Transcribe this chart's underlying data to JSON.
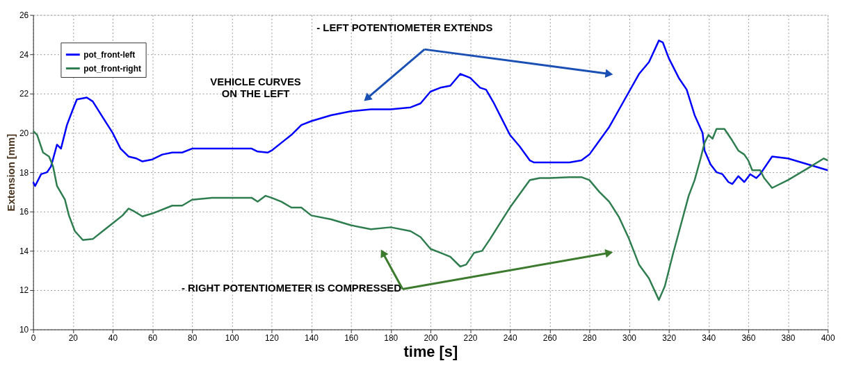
{
  "chart_data": {
    "type": "line",
    "xlabel": "time [s]",
    "ylabel": "Extension [mm]",
    "xlim": [
      0,
      400
    ],
    "xticks": [
      0,
      20,
      40,
      60,
      80,
      100,
      120,
      140,
      160,
      180,
      200,
      220,
      240,
      260,
      280,
      300,
      320,
      340,
      360,
      380,
      400
    ],
    "ylim": [
      10,
      26
    ],
    "yticks": [
      10,
      12,
      14,
      16,
      18,
      20,
      22,
      24,
      26
    ],
    "grid": true,
    "legend": "top left",
    "line_style": "solid",
    "marker": "none",
    "annotations": [
      "- LEFT POTENTIOMETER  EXTENDS",
      "VEHICLE  CURVES\nON THE LEFT",
      "- RIGHT POTENTIOMETER  IS COMPRESSED"
    ],
    "series": [
      {
        "name": "pot_front-left",
        "color": "#0000ff",
        "x": [
          0,
          1,
          4,
          7,
          9,
          12,
          14,
          17,
          20,
          22,
          27,
          30,
          35,
          40,
          44,
          48,
          52,
          55,
          60,
          65,
          70,
          75,
          80,
          90,
          100,
          110,
          113,
          118,
          120,
          125,
          130,
          135,
          140,
          150,
          160,
          170,
          180,
          190,
          195,
          200,
          205,
          210,
          215,
          220,
          225,
          228,
          232,
          236,
          240,
          245,
          250,
          252,
          260,
          270,
          276,
          280,
          285,
          290,
          295,
          300,
          305,
          310,
          315,
          317,
          320,
          325,
          329,
          333,
          337,
          338,
          341,
          344,
          347,
          350,
          352,
          355,
          358,
          361,
          364,
          366,
          372,
          380,
          390,
          400
        ],
        "values": [
          17.5,
          17.3,
          17.9,
          18.0,
          18.3,
          19.4,
          19.2,
          20.4,
          21.2,
          21.7,
          21.8,
          21.6,
          20.8,
          20.0,
          19.2,
          18.8,
          18.7,
          18.55,
          18.65,
          18.9,
          19.0,
          19.0,
          19.2,
          19.2,
          19.2,
          19.2,
          19.05,
          19.0,
          19.1,
          19.5,
          19.9,
          20.4,
          20.6,
          20.9,
          21.1,
          21.2,
          21.2,
          21.3,
          21.5,
          22.1,
          22.3,
          22.4,
          23.0,
          22.8,
          22.3,
          22.2,
          21.5,
          20.7,
          19.9,
          19.3,
          18.6,
          18.5,
          18.5,
          18.5,
          18.6,
          18.9,
          19.6,
          20.3,
          21.2,
          22.1,
          23.0,
          23.6,
          24.7,
          24.6,
          23.8,
          22.8,
          22.2,
          20.9,
          20.0,
          19.1,
          18.4,
          18.0,
          17.9,
          17.5,
          17.4,
          17.8,
          17.5,
          17.9,
          17.7,
          17.9,
          18.8,
          18.7,
          18.4,
          18.1
        ]
      },
      {
        "name": "pot_front-right",
        "color": "#2e7d4f",
        "x": [
          0,
          2,
          5,
          8,
          10,
          12,
          16,
          18,
          21,
          25,
          30,
          35,
          40,
          45,
          48,
          51,
          55,
          60,
          70,
          75,
          80,
          90,
          100,
          110,
          113,
          117,
          120,
          125,
          130,
          135,
          140,
          150,
          160,
          170,
          180,
          190,
          195,
          200,
          205,
          210,
          215,
          218,
          222,
          226,
          230,
          235,
          240,
          245,
          250,
          255,
          260,
          270,
          276,
          280,
          285,
          290,
          295,
          300,
          305,
          310,
          315,
          318,
          322,
          326,
          330,
          333,
          336,
          338,
          340,
          342,
          344,
          348,
          352,
          355,
          358,
          360,
          362,
          366,
          368,
          372,
          380,
          390,
          398,
          400
        ],
        "values": [
          20.1,
          19.9,
          19.0,
          18.8,
          18.3,
          17.3,
          16.6,
          15.8,
          15.0,
          14.55,
          14.6,
          15.0,
          15.4,
          15.8,
          16.15,
          16.0,
          15.75,
          15.9,
          16.3,
          16.3,
          16.6,
          16.7,
          16.7,
          16.7,
          16.5,
          16.8,
          16.7,
          16.5,
          16.2,
          16.2,
          15.8,
          15.6,
          15.3,
          15.1,
          15.2,
          15.0,
          14.7,
          14.1,
          13.9,
          13.7,
          13.2,
          13.3,
          13.9,
          14.0,
          14.6,
          15.4,
          16.2,
          16.9,
          17.6,
          17.7,
          17.7,
          17.75,
          17.75,
          17.6,
          17.0,
          16.5,
          15.7,
          14.6,
          13.3,
          12.6,
          11.5,
          12.2,
          13.8,
          15.3,
          16.8,
          17.6,
          18.7,
          19.5,
          19.9,
          19.7,
          20.2,
          20.2,
          19.6,
          19.1,
          18.9,
          18.6,
          18.1,
          18.1,
          17.7,
          17.2,
          17.6,
          18.2,
          18.7,
          18.6
        ]
      }
    ]
  }
}
